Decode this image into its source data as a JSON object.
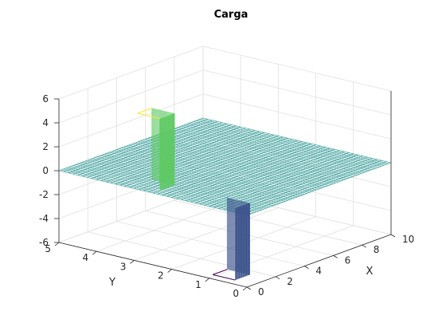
{
  "chart_data": {
    "type": "surface",
    "title": "Carga",
    "xlabel": "X",
    "ylabel": "Y",
    "zlabel": "",
    "xlim": [
      0,
      10
    ],
    "ylim": [
      0,
      5
    ],
    "zlim": [
      -6,
      6
    ],
    "xticks": [
      "0",
      "2",
      "4",
      "6",
      "8",
      "10"
    ],
    "yticks": [
      "0",
      "1",
      "2",
      "3",
      "4",
      "5"
    ],
    "zticks": [
      "-6",
      "-4",
      "-2",
      "0",
      "2",
      "4",
      "6"
    ],
    "colormap": "viridis",
    "grid": true,
    "surface": {
      "baseline_z": 0,
      "features": [
        {
          "name": "positive plate",
          "z": 6,
          "x_range": [
            0.5,
            1.5
          ],
          "y_range": [
            2.5,
            3.1
          ]
        },
        {
          "name": "negative plate",
          "z": -6,
          "x_range": [
            0.5,
            1.5
          ],
          "y_range": [
            0.5,
            1.1
          ]
        }
      ]
    }
  }
}
